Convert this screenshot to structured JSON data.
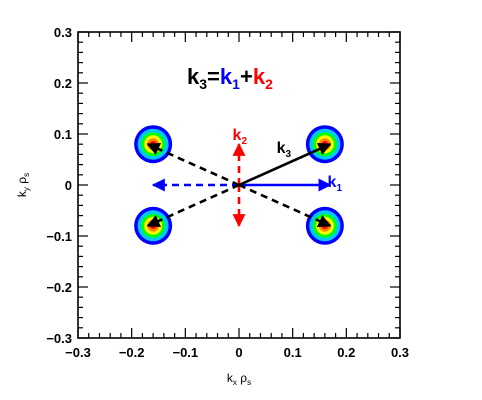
{
  "chart_data": {
    "type": "scatter",
    "title": "",
    "xlabel": "k_x ρ_s",
    "ylabel": "k_y ρ_s",
    "xlim": [
      -0.3,
      0.3
    ],
    "ylim": [
      -0.3,
      0.3
    ],
    "xticks": [
      "−0.3",
      "−0.2",
      "−0.1",
      "0",
      "0.1",
      "0.2",
      "0.3"
    ],
    "yticks": [
      "−0.3",
      "−0.2",
      "−0.1",
      "0",
      "0.1",
      "0.2",
      "0.3"
    ],
    "xtick_values": [
      -0.3,
      -0.2,
      -0.1,
      0,
      0.1,
      0.2,
      0.3
    ],
    "ytick_values": [
      -0.3,
      -0.2,
      -0.1,
      0,
      0.1,
      0.2,
      0.3
    ],
    "grid": false,
    "equation": {
      "lhs": "k",
      "lhs_sub": "3",
      "eq": "=",
      "k1": "k",
      "k1_sub": "1",
      "plus": "+",
      "k2": "k",
      "k2_sub": "2"
    },
    "spots": [
      {
        "x": -0.16,
        "y": 0.08
      },
      {
        "x": 0.16,
        "y": 0.08
      },
      {
        "x": -0.16,
        "y": -0.08
      },
      {
        "x": 0.16,
        "y": -0.08
      }
    ],
    "spot_colors": [
      "#0000ff",
      "#00c8ff",
      "#00ff00",
      "#ffff00",
      "#ff8800",
      "#ff0000"
    ],
    "vectors": [
      {
        "name": "k1",
        "label": "k",
        "sub": "1",
        "from": [
          0,
          0
        ],
        "to": [
          0.17,
          0
        ],
        "color": "#0000ff",
        "style": "solid"
      },
      {
        "name": "k1-neg",
        "from": [
          0,
          0
        ],
        "to": [
          -0.16,
          0
        ],
        "color": "#0000ff",
        "style": "dashed"
      },
      {
        "name": "k2",
        "label": "k",
        "sub": "2",
        "from": [
          0,
          0
        ],
        "to": [
          0,
          0.08
        ],
        "color": "#ff0000",
        "style": "dashed"
      },
      {
        "name": "k2-neg",
        "from": [
          0,
          0
        ],
        "to": [
          0,
          -0.08
        ],
        "color": "#ff0000",
        "style": "dashed"
      },
      {
        "name": "k3",
        "label": "k",
        "sub": "3",
        "from": [
          0,
          0
        ],
        "to": [
          0.17,
          0.08
        ],
        "color": "#000000",
        "style": "solid"
      },
      {
        "name": "k3-ul",
        "from": [
          0,
          0
        ],
        "to": [
          -0.17,
          0.08
        ],
        "color": "#000000",
        "style": "dashed"
      },
      {
        "name": "k3-ll",
        "from": [
          0,
          0
        ],
        "to": [
          -0.17,
          -0.08
        ],
        "color": "#000000",
        "style": "dashed"
      },
      {
        "name": "k3-lr",
        "from": [
          0,
          0
        ],
        "to": [
          0.17,
          -0.08
        ],
        "color": "#000000",
        "style": "dashed"
      }
    ]
  }
}
